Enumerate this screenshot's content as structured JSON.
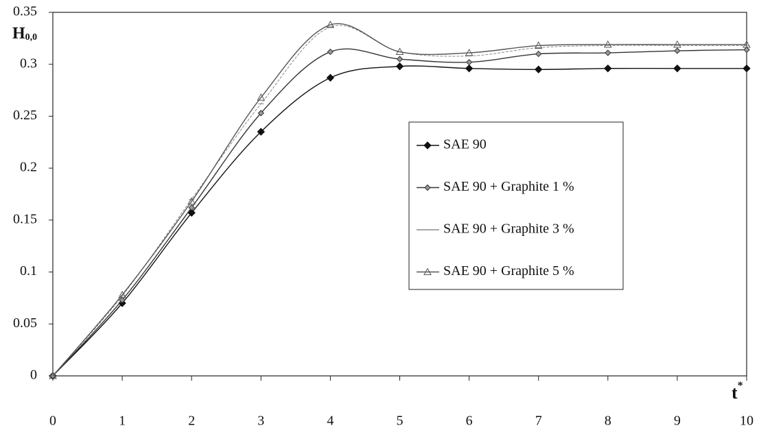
{
  "chart_data": {
    "type": "line",
    "ylabel": {
      "main": "H",
      "sub": "0,0"
    },
    "xlabel": {
      "main": "t",
      "sup": "*"
    },
    "x": [
      0,
      1,
      2,
      3,
      4,
      5,
      6,
      7,
      8,
      9,
      10
    ],
    "xlim": [
      0,
      10
    ],
    "xticks": [
      0,
      1,
      2,
      3,
      4,
      5,
      6,
      7,
      8,
      9,
      10
    ],
    "ylim": [
      0,
      0.35
    ],
    "yticks": [
      0,
      0.05,
      0.1,
      0.15,
      0.2,
      0.25,
      0.3,
      0.35
    ],
    "series": [
      {
        "name": "SAE 90",
        "color": "#111111",
        "marker": "diamond",
        "values": [
          0,
          0.07,
          0.157,
          0.235,
          0.287,
          0.298,
          0.296,
          0.295,
          0.296,
          0.296,
          0.296
        ]
      },
      {
        "name": "SAE 90 + Graphite 1 %",
        "color": "#333333",
        "marker": "small-diamond",
        "values": [
          0,
          0.073,
          0.162,
          0.253,
          0.312,
          0.305,
          0.302,
          0.31,
          0.311,
          0.313,
          0.314
        ]
      },
      {
        "name": "SAE 90 + Graphite 3 %",
        "color": "#888888",
        "marker": "dash",
        "values": [
          0,
          0.077,
          0.17,
          0.262,
          0.336,
          0.312,
          0.308,
          0.316,
          0.318,
          0.318,
          0.318
        ]
      },
      {
        "name": "SAE 90 + Graphite 5 %",
        "color": "#555555",
        "marker": "triangle",
        "values": [
          0,
          0.078,
          0.168,
          0.268,
          0.338,
          0.312,
          0.311,
          0.318,
          0.319,
          0.319,
          0.319
        ]
      }
    ]
  }
}
